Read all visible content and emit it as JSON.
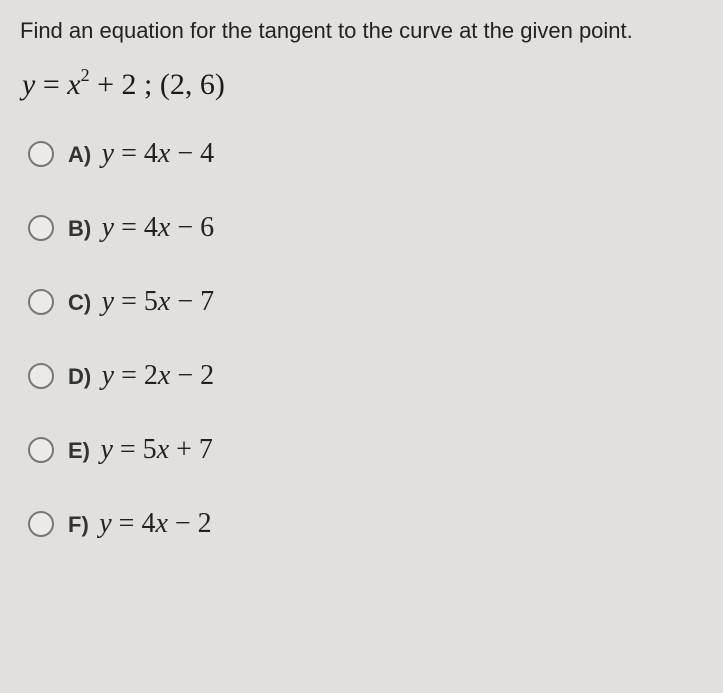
{
  "question": "Find an equation for the tangent to the curve at the given point.",
  "main_equation": "y = x² + 2 ; (2, 6)",
  "options": [
    {
      "label": "A)",
      "equation": "y = 4x − 4"
    },
    {
      "label": "B)",
      "equation": "y = 4x − 6"
    },
    {
      "label": "C)",
      "equation": "y = 5x − 7"
    },
    {
      "label": "D)",
      "equation": "y = 2x − 2"
    },
    {
      "label": "E)",
      "equation": "y = 5x + 7"
    },
    {
      "label": "F)",
      "equation": "y = 4x − 2"
    }
  ],
  "styling": {
    "background_color": "#e2e0de",
    "text_color": "#2a2a2a",
    "question_fontsize": 22,
    "equation_fontsize": 30,
    "option_label_fontsize": 22,
    "option_equation_fontsize": 28,
    "radio_border_color": "#777777",
    "radio_fill_color": "#eceae8",
    "font_family_sans": "Arial, Helvetica, sans-serif",
    "font_family_serif": "Georgia, Times New Roman, serif",
    "option_spacing": 42
  }
}
